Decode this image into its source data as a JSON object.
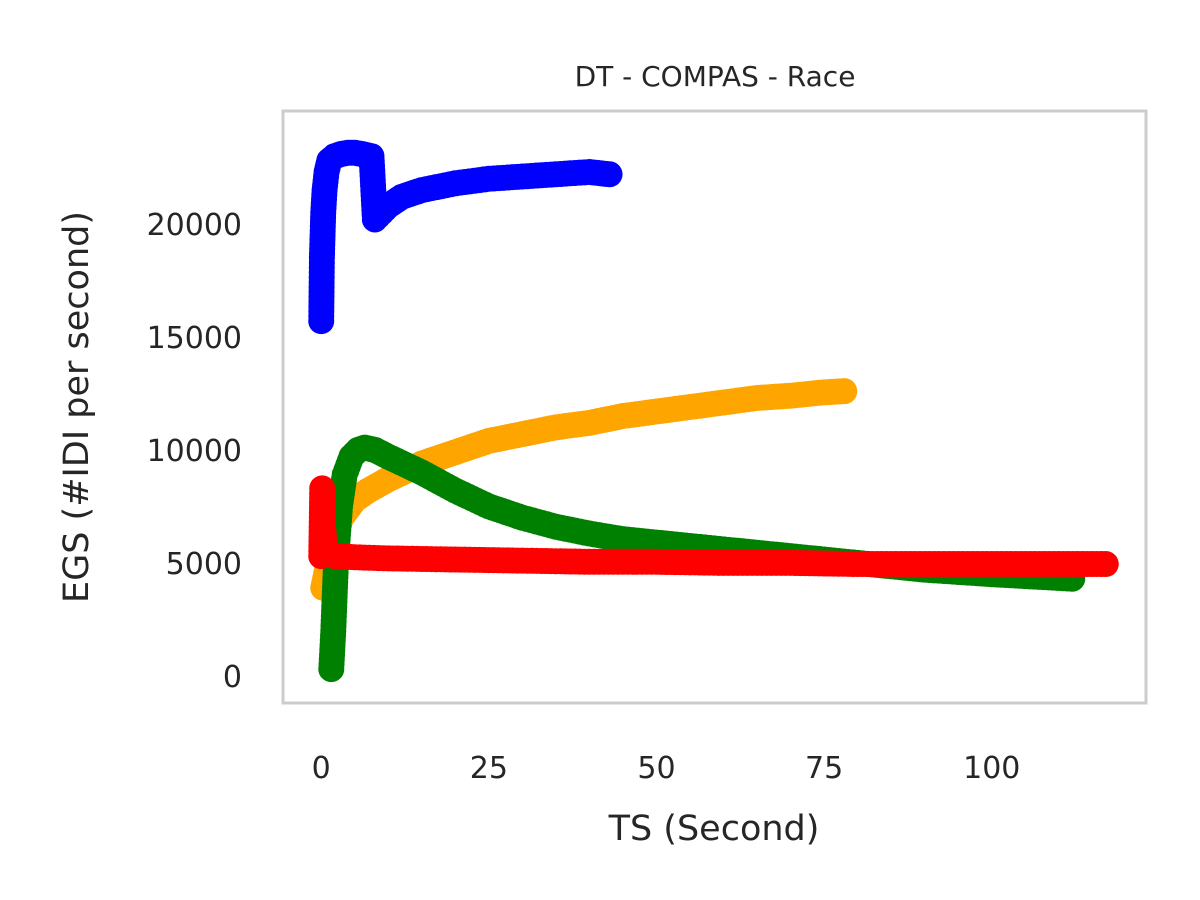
{
  "chart_data": {
    "type": "line",
    "title": "DT - COMPAS - Race",
    "xlabel": "TS (Second)",
    "ylabel": "EGS (#IDI  per second)",
    "xlim": [
      -5.7,
      123
    ],
    "ylim": [
      -1200,
      25000
    ],
    "xticks": [
      0,
      25,
      50,
      75,
      100
    ],
    "yticks": [
      0,
      5000,
      10000,
      15000,
      20000
    ],
    "grid": false,
    "legend": "none",
    "series": [
      {
        "color": "#0000ff",
        "points": [
          [
            0,
            15700
          ],
          [
            0.1,
            18500
          ],
          [
            0.2,
            19500
          ],
          [
            0.3,
            20500
          ],
          [
            0.5,
            21500
          ],
          [
            0.8,
            22300
          ],
          [
            1.2,
            22800
          ],
          [
            2,
            23000
          ],
          [
            3,
            23100
          ],
          [
            4,
            23150
          ],
          [
            5,
            23150
          ],
          [
            6,
            23100
          ],
          [
            7.5,
            23000
          ],
          [
            8,
            20200
          ],
          [
            9,
            20500
          ],
          [
            10,
            20800
          ],
          [
            12,
            21200
          ],
          [
            15,
            21500
          ],
          [
            20,
            21800
          ],
          [
            25,
            22000
          ],
          [
            30,
            22100
          ],
          [
            35,
            22200
          ],
          [
            40,
            22300
          ],
          [
            43,
            22200
          ]
        ]
      },
      {
        "color": "#ffa500",
        "points": [
          [
            0.3,
            3900
          ],
          [
            1,
            4900
          ],
          [
            2,
            6200
          ],
          [
            3,
            7000
          ],
          [
            5,
            7800
          ],
          [
            7,
            8200
          ],
          [
            10,
            8700
          ],
          [
            15,
            9400
          ],
          [
            20,
            9900
          ],
          [
            25,
            10400
          ],
          [
            30,
            10700
          ],
          [
            35,
            11000
          ],
          [
            40,
            11200
          ],
          [
            45,
            11500
          ],
          [
            50,
            11700
          ],
          [
            55,
            11900
          ],
          [
            60,
            12100
          ],
          [
            65,
            12300
          ],
          [
            70,
            12400
          ],
          [
            75,
            12550
          ],
          [
            78,
            12600
          ]
        ]
      },
      {
        "color": "#008000",
        "points": [
          [
            1.5,
            300
          ],
          [
            1.8,
            2000
          ],
          [
            2.2,
            5000
          ],
          [
            2.8,
            7500
          ],
          [
            3.5,
            8900
          ],
          [
            4.5,
            9700
          ],
          [
            5.5,
            10000
          ],
          [
            6.5,
            10100
          ],
          [
            8,
            10000
          ],
          [
            10,
            9700
          ],
          [
            15,
            9000
          ],
          [
            20,
            8200
          ],
          [
            25,
            7500
          ],
          [
            30,
            7000
          ],
          [
            35,
            6600
          ],
          [
            40,
            6300
          ],
          [
            45,
            6050
          ],
          [
            50,
            5900
          ],
          [
            60,
            5600
          ],
          [
            70,
            5300
          ],
          [
            80,
            5000
          ],
          [
            90,
            4700
          ],
          [
            100,
            4500
          ],
          [
            112,
            4300
          ]
        ]
      },
      {
        "color": "#ff0000",
        "points": [
          [
            0,
            5300
          ],
          [
            0.15,
            8300
          ],
          [
            0.3,
            6500
          ],
          [
            0.5,
            5800
          ],
          [
            1,
            5400
          ],
          [
            2,
            5300
          ],
          [
            5,
            5250
          ],
          [
            10,
            5200
          ],
          [
            20,
            5150
          ],
          [
            30,
            5100
          ],
          [
            40,
            5050
          ],
          [
            50,
            5050
          ],
          [
            60,
            5000
          ],
          [
            70,
            5000
          ],
          [
            80,
            4950
          ],
          [
            90,
            4950
          ],
          [
            100,
            4950
          ],
          [
            110,
            4950
          ],
          [
            117,
            4950
          ]
        ]
      }
    ]
  }
}
